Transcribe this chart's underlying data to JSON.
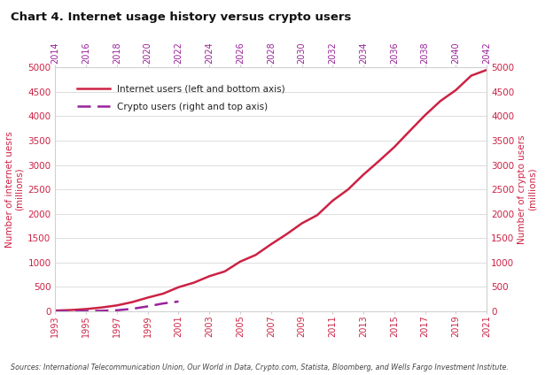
{
  "title": "Chart 4. Internet usage history versus crypto users",
  "footnote": "Sources: International Telecommunication Union, Our World in Data, Crypto.com, Statista, Bloomberg, and Wells Fargo Investment Institute.",
  "internet_years": [
    1993,
    1994,
    1995,
    1996,
    1997,
    1998,
    1999,
    2000,
    2001,
    2002,
    2003,
    2004,
    2005,
    2006,
    2007,
    2008,
    2009,
    2010,
    2011,
    2012,
    2013,
    2014,
    2015,
    2016,
    2017,
    2018,
    2019,
    2020,
    2021
  ],
  "internet_values": [
    14,
    25,
    45,
    77,
    120,
    188,
    280,
    361,
    493,
    587,
    719,
    817,
    1018,
    1154,
    1373,
    1578,
    1802,
    1971,
    2267,
    2497,
    2802,
    3079,
    3366,
    3696,
    4021,
    4313,
    4536,
    4833,
    4950
  ],
  "crypto_years": [
    1993,
    1994,
    1995,
    1996,
    1997,
    1998,
    1999,
    2000,
    2001
  ],
  "crypto_values": [
    2,
    4,
    6,
    10,
    20,
    50,
    100,
    160,
    200
  ],
  "bottom_xticks": [
    1993,
    1995,
    1997,
    1999,
    2001,
    2003,
    2005,
    2007,
    2009,
    2011,
    2013,
    2015,
    2017,
    2019,
    2021
  ],
  "top_xticks": [
    2014,
    2016,
    2018,
    2020,
    2022,
    2024,
    2026,
    2028,
    2030,
    2032,
    2034,
    2036,
    2038,
    2040,
    2042
  ],
  "ylim": [
    0,
    5000
  ],
  "yticks": [
    0,
    500,
    1000,
    1500,
    2000,
    2500,
    3000,
    3500,
    4000,
    4500,
    5000
  ],
  "internet_color": "#cc2244",
  "crypto_color": "#992299",
  "axis_label_color": "#cc2244",
  "ylabel_left": "Number of internet uesrs\n(millions)",
  "ylabel_right": "Number of crypto users\n(millions)",
  "legend_internet": "Internet users (left and bottom axis)",
  "legend_crypto": "Crypto users (right and top axis)",
  "bg_color": "#ffffff",
  "grid_color": "#d0d0d0",
  "tick_color": "#d0d0d0"
}
